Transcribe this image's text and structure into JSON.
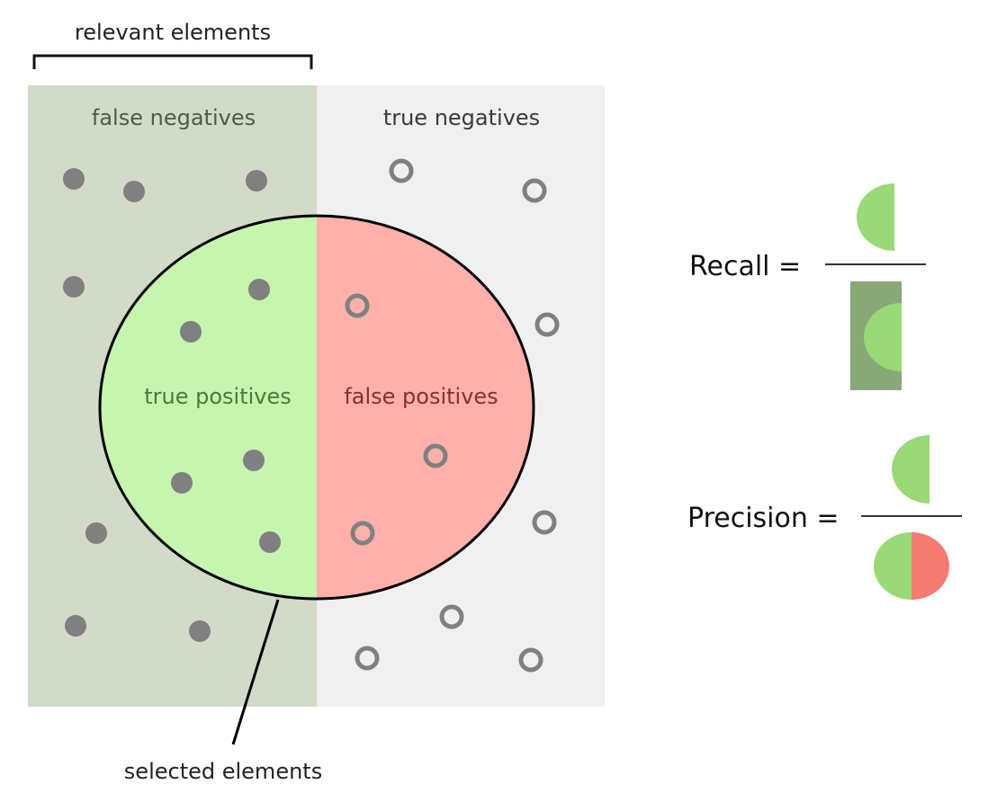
{
  "labels": {
    "relevant_elements": "relevant elements",
    "false_negatives": "false negatives",
    "true_negatives": "true negatives",
    "true_positives": "true positives",
    "false_positives": "false positives",
    "selected_elements": "selected elements"
  },
  "formulas": {
    "recall": "Recall =",
    "precision": "Precision ="
  },
  "colors": {
    "relevant_background": "#d2dbc8",
    "irrelevant_background": "#f0f0f0",
    "true_positive_fill": "#c5f5ae",
    "false_positive_fill": "#ffb0aa",
    "dot": "#808080",
    "recall_denominator_bg": "#88a878",
    "half_disc_green": "#99d977",
    "half_disc_red": "#f47b72"
  }
}
